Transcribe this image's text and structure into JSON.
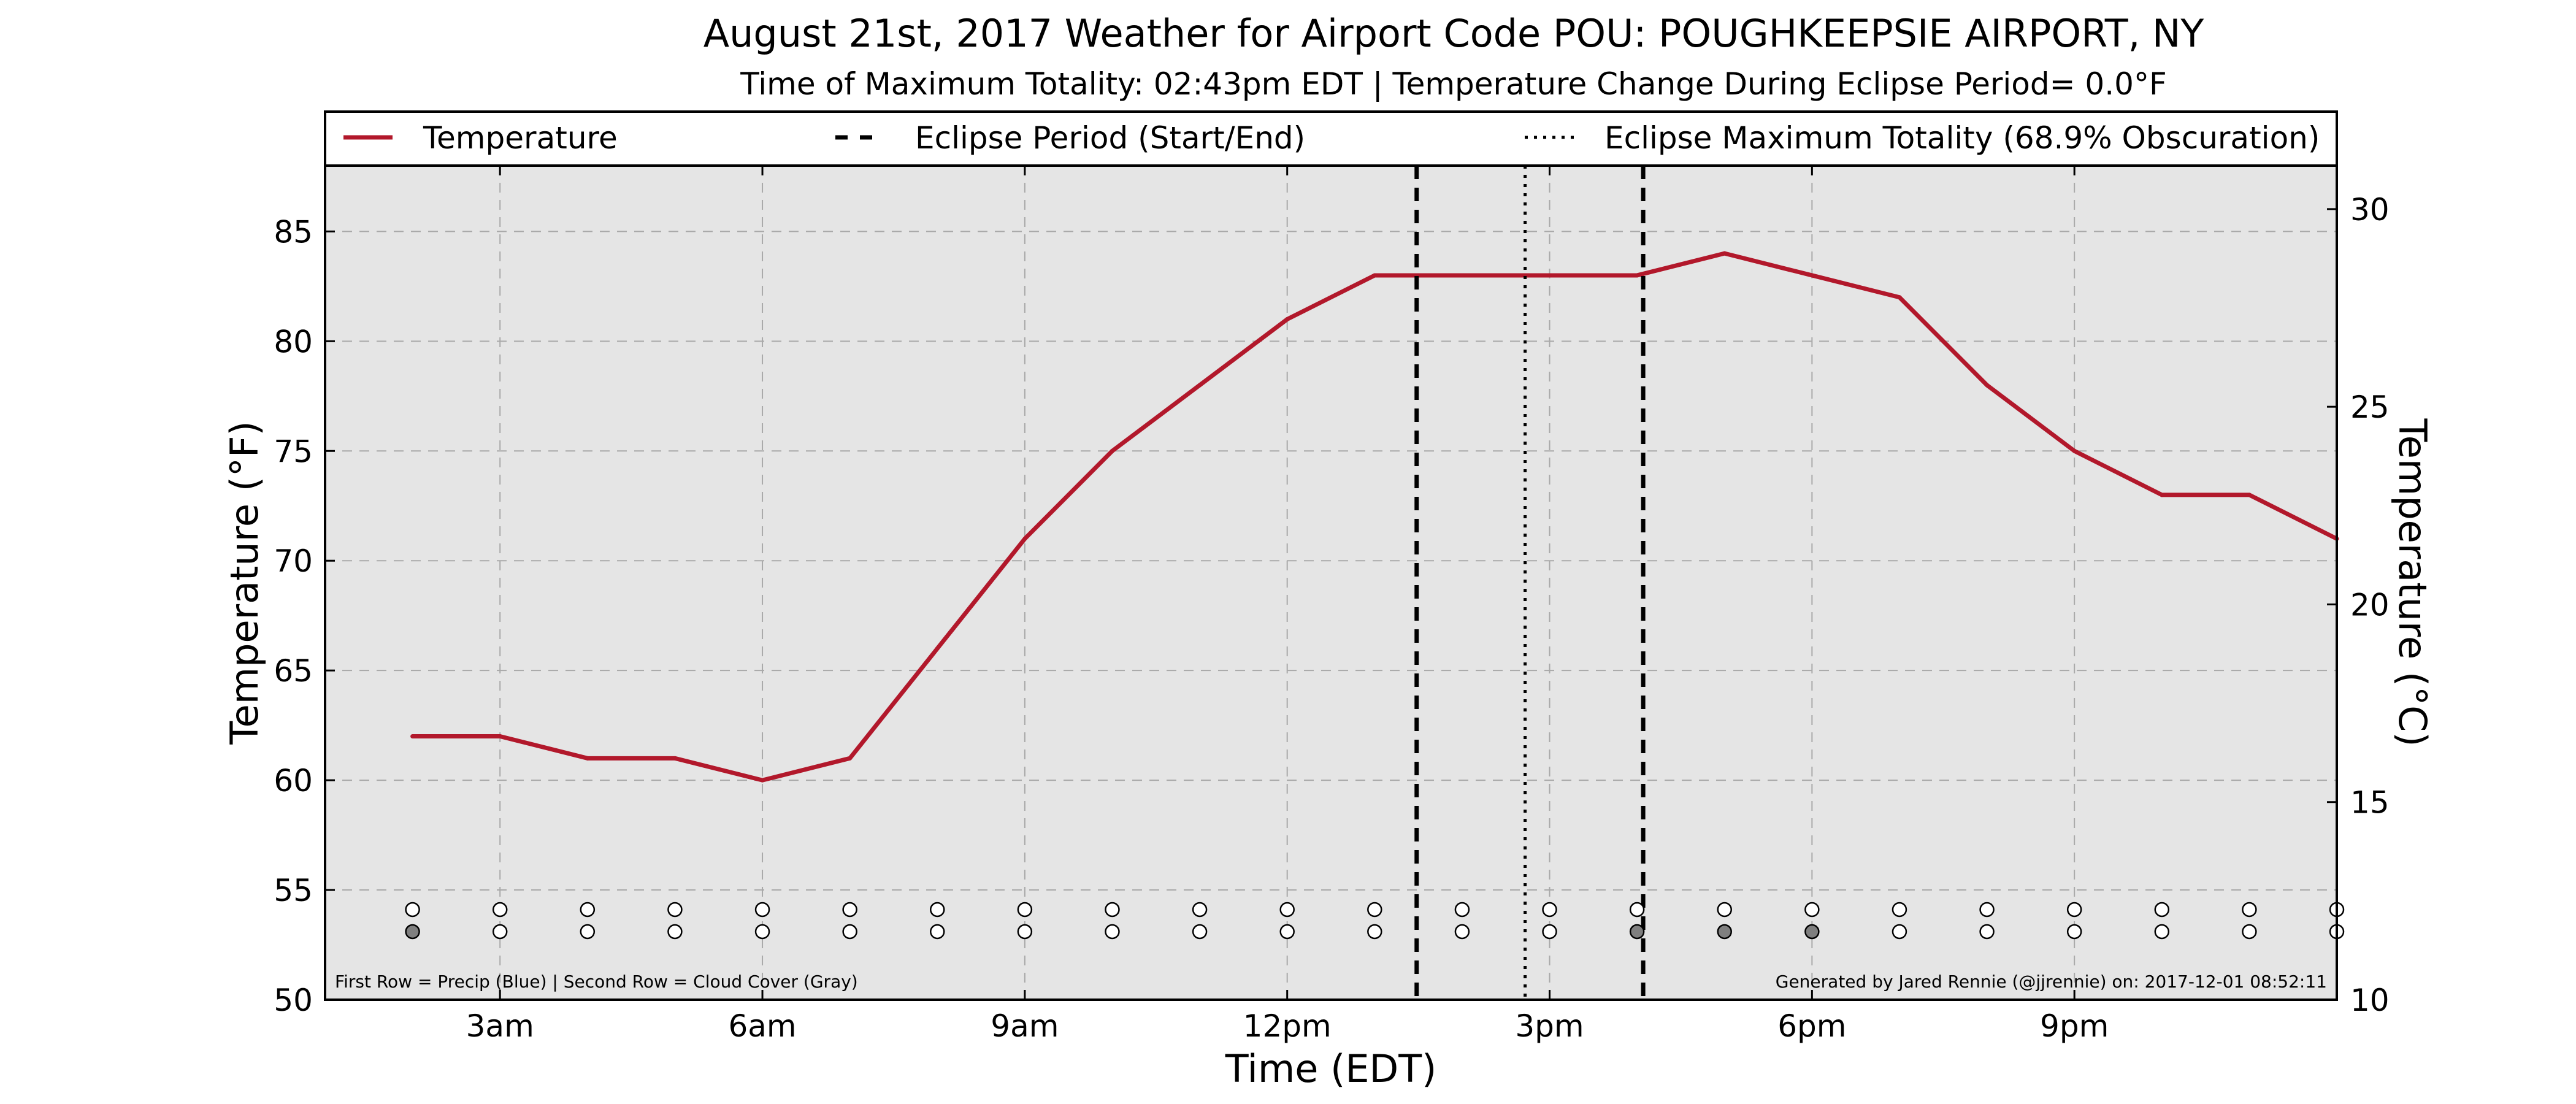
{
  "chart": {
    "title": "August 21st, 2017 Weather for Airport Code POU: POUGHKEEPSIE AIRPORT, NY",
    "subtitle": "Time of Maximum Totality: 02:43pm EDT | Temperature Change During Eclipse Period= 0.0°F",
    "footnote_left": "First Row = Precip (Blue) | Second Row = Cloud Cover (Gray)",
    "footnote_right": "Generated by Jared Rennie (@jjrennie) on: 2017-12-01 08:52:11"
  },
  "chart_data": {
    "type": "line",
    "xlabel": "Time (EDT)",
    "ylabel": "Temperature (°F)",
    "ylabel_right": "Temperature (°C)",
    "xlim": [
      1,
      24
    ],
    "ylim": [
      50,
      88
    ],
    "ylim_right": [
      10,
      31.1
    ],
    "x_ticks": [
      3,
      6,
      9,
      12,
      15,
      18,
      21
    ],
    "x_tick_labels": [
      "3am",
      "6am",
      "9am",
      "12pm",
      "3pm",
      "6pm",
      "9pm"
    ],
    "y_ticks": [
      50,
      55,
      60,
      65,
      70,
      75,
      80,
      85
    ],
    "y_tick_labels": [
      "50",
      "55",
      "60",
      "65",
      "70",
      "75",
      "80",
      "85"
    ],
    "y_ticks_right": [
      10,
      15,
      20,
      25,
      30
    ],
    "y_tick_labels_right": [
      "10",
      "15",
      "20",
      "25",
      "30"
    ],
    "grid": true,
    "legend_position": "top",
    "legend": [
      {
        "label": "Temperature",
        "style": "solid"
      },
      {
        "label": "Eclipse Period (Start/End)",
        "style": "dashed"
      },
      {
        "label": "Eclipse Maximum Totality (68.9% Obscuration)",
        "style": "dotted"
      }
    ],
    "series": [
      {
        "name": "Temperature",
        "color": "#b2182b",
        "x": [
          2,
          3,
          4,
          5,
          6,
          7,
          8,
          9,
          10,
          11,
          12,
          13,
          14,
          15,
          16,
          17,
          18,
          19,
          20,
          21,
          22,
          23,
          24
        ],
        "values": [
          62,
          62,
          61,
          61,
          60,
          61,
          66,
          71,
          75,
          78,
          81,
          83,
          83,
          83,
          83,
          84,
          83,
          82,
          78,
          75,
          73,
          73,
          71
        ]
      }
    ],
    "eclipse_start": 13.48,
    "eclipse_end": 16.07,
    "eclipse_max": 14.72,
    "indicator_rows": {
      "x": [
        2,
        3,
        4,
        5,
        6,
        7,
        8,
        9,
        10,
        11,
        12,
        13,
        14,
        15,
        16,
        17,
        18,
        19,
        20,
        21,
        22,
        23,
        24
      ],
      "precip": [
        0,
        0,
        0,
        0,
        0,
        0,
        0,
        0,
        0,
        0,
        0,
        0,
        0,
        0,
        0,
        0,
        0,
        0,
        0,
        0,
        0,
        0,
        0
      ],
      "cloud_cover": [
        1,
        0,
        0,
        0,
        0,
        0,
        0,
        0,
        0,
        0,
        0,
        0,
        0,
        0,
        1,
        1,
        1,
        0,
        0,
        0,
        0,
        0,
        0
      ]
    },
    "colors": {
      "line": "#b2182b",
      "plot_background": "#e5e5e5",
      "grid": "#a9a9a9",
      "cloud_fill": "#7f7f7f",
      "precip_fill": "#2166ac",
      "empty_marker": "#ffffff"
    }
  }
}
